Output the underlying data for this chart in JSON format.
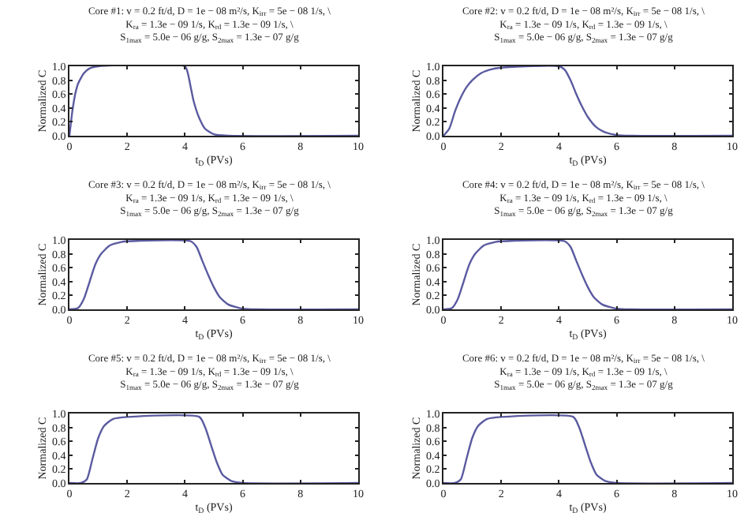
{
  "chart_data": [
    {
      "type": "line",
      "title": "Core #1: v = 0.2 ft/d, D = 1e − 08 m²/s, K$_{irr}$ = 5e − 08 1/s, \\\nK$_{ra}$ = 1.3e − 09 1/s, K$_{rd}$ = 1.3e − 09 1/s, \\\nS$_{1max}$ = 5.0e − 06 g/g, S$_{2max}$ = 1.3e − 07 g/g",
      "xlabel": "t$_{D}$ (PVs)",
      "ylabel": "Normalized C",
      "color": "#5a5aa0",
      "xlim": [
        0,
        10
      ],
      "ylim": [
        0,
        1
      ],
      "xticks": [
        0,
        2,
        4,
        6,
        8,
        10
      ],
      "yticks": [
        {
          "value": 0,
          "label": "0.0"
        },
        {
          "value": 0.2,
          "label": "0.2"
        },
        {
          "value": 0.4,
          "label": "0.4"
        },
        {
          "value": 0.6,
          "label": "0.6"
        },
        {
          "value": 0.8,
          "label": "0.8"
        },
        {
          "value": 1,
          "label": "1.0"
        }
      ],
      "x": [
        0,
        0.1,
        0.2,
        0.3,
        0.5,
        0.7,
        1,
        4,
        4.1,
        4.2,
        4.3,
        4.5,
        4.7,
        5,
        5.5,
        10
      ],
      "values": [
        0,
        0.35,
        0.6,
        0.75,
        0.9,
        0.97,
        1,
        1,
        0.9,
        0.7,
        0.5,
        0.25,
        0.1,
        0.02,
        0,
        0
      ]
    },
    {
      "type": "line",
      "title": "Core #2: v = 0.2 ft/d, D = 1e − 08 m²/s, K$_{irr}$ = 5e − 08 1/s, \\\nK$_{ra}$ = 1.3e − 09 1/s, K$_{rd}$ = 1.3e − 09 1/s, \\\nS$_{1max}$ = 5.0e − 06 g/g, S$_{2max}$ = 1.3e − 07 g/g",
      "xlabel": "t$_{D}$ (PVs)",
      "ylabel": "Normalized C",
      "color": "#5a5aa0",
      "xlim": [
        0,
        10
      ],
      "ylim": [
        0,
        1
      ],
      "xticks": [
        0,
        2,
        4,
        6,
        8,
        10
      ],
      "yticks": [
        {
          "value": 0,
          "label": "0.0"
        },
        {
          "value": 0.2,
          "label": "0.2"
        },
        {
          "value": 0.4,
          "label": "0.4"
        },
        {
          "value": 0.6,
          "label": "0.6"
        },
        {
          "value": 0.8,
          "label": "0.8"
        },
        {
          "value": 1,
          "label": "1.0"
        }
      ],
      "x": [
        0,
        0.2,
        0.4,
        0.6,
        0.8,
        1,
        1.3,
        1.6,
        2,
        4,
        4.2,
        4.4,
        4.6,
        4.8,
        5,
        5.3,
        5.6,
        6,
        6.5,
        10
      ],
      "values": [
        0,
        0.1,
        0.35,
        0.55,
        0.7,
        0.8,
        0.9,
        0.95,
        0.98,
        1,
        0.95,
        0.8,
        0.6,
        0.42,
        0.27,
        0.12,
        0.05,
        0.01,
        0,
        0
      ]
    },
    {
      "type": "line",
      "title": "Core #3: v = 0.2 ft/d, D = 1e − 08 m²/s, K$_{irr}$ = 5e − 08 1/s, \\\nK$_{ra}$ = 1.3e − 09 1/s, K$_{rd}$ = 1.3e − 09 1/s, \\\nS$_{1max}$ = 5.0e − 06 g/g, S$_{2max}$ = 1.3e − 07 g/g",
      "xlabel": "t$_{D}$ (PVs)",
      "ylabel": "Normalized C",
      "color": "#5a5aa0",
      "xlim": [
        0,
        10
      ],
      "ylim": [
        0,
        1
      ],
      "xticks": [
        0,
        2,
        4,
        6,
        8,
        10
      ],
      "yticks": [
        {
          "value": 0,
          "label": "0.0"
        },
        {
          "value": 0.2,
          "label": "0.2"
        },
        {
          "value": 0.4,
          "label": "0.4"
        },
        {
          "value": 0.6,
          "label": "0.6"
        },
        {
          "value": 0.8,
          "label": "0.8"
        },
        {
          "value": 1,
          "label": "1.0"
        }
      ],
      "x": [
        0,
        0.3,
        0.5,
        0.7,
        0.9,
        1.1,
        1.4,
        1.8,
        2,
        4.2,
        4.4,
        4.6,
        4.8,
        5,
        5.2,
        5.5,
        6,
        6.5,
        10
      ],
      "values": [
        0,
        0.02,
        0.15,
        0.4,
        0.65,
        0.8,
        0.92,
        0.97,
        0.98,
        0.98,
        0.9,
        0.7,
        0.5,
        0.32,
        0.18,
        0.07,
        0.01,
        0,
        0
      ]
    },
    {
      "type": "line",
      "title": "Core #4: v = 0.2 ft/d, D = 1e − 08 m²/s, K$_{irr}$ = 5e − 08 1/s, \\\nK$_{ra}$ = 1.3e − 09 1/s, K$_{rd}$ = 1.3e − 09 1/s, \\\nS$_{1max}$ = 5.0e − 06 g/g, S$_{2max}$ = 1.3e − 07 g/g",
      "xlabel": "t$_{D}$ (PVs)",
      "ylabel": "Normalized C",
      "color": "#5a5aa0",
      "xlim": [
        0,
        10
      ],
      "ylim": [
        0,
        1
      ],
      "xticks": [
        0,
        2,
        4,
        6,
        8,
        10
      ],
      "yticks": [
        {
          "value": 0,
          "label": "0.0"
        },
        {
          "value": 0.2,
          "label": "0.2"
        },
        {
          "value": 0.4,
          "label": "0.4"
        },
        {
          "value": 0.6,
          "label": "0.6"
        },
        {
          "value": 0.8,
          "label": "0.8"
        },
        {
          "value": 1,
          "label": "1.0"
        }
      ],
      "x": [
        0,
        0.3,
        0.5,
        0.7,
        0.9,
        1.1,
        1.4,
        1.8,
        2,
        4.2,
        4.4,
        4.6,
        4.8,
        5,
        5.2,
        5.5,
        6,
        6.5,
        10
      ],
      "values": [
        0,
        0.02,
        0.15,
        0.4,
        0.65,
        0.8,
        0.92,
        0.97,
        0.98,
        0.98,
        0.9,
        0.7,
        0.5,
        0.32,
        0.18,
        0.07,
        0.01,
        0,
        0
      ]
    },
    {
      "type": "line",
      "title": "Core #5: v = 0.2 ft/d, D = 1e − 08 m²/s, K$_{irr}$ = 5e − 08 1/s, \\\nK$_{ra}$ = 1.3e − 09 1/s, K$_{rd}$ = 1.3e − 09 1/s, \\\nS$_{1max}$ = 5.0e − 06 g/g, S$_{2max}$ = 1.3e − 07 g/g",
      "xlabel": "t$_{D}$ (PVs)",
      "ylabel": "Normalized C",
      "color": "#5a5aa0",
      "xlim": [
        0,
        10
      ],
      "ylim": [
        0,
        1
      ],
      "xticks": [
        0,
        2,
        4,
        6,
        8,
        10
      ],
      "yticks": [
        {
          "value": 0,
          "label": "0.0"
        },
        {
          "value": 0.2,
          "label": "0.2"
        },
        {
          "value": 0.4,
          "label": "0.4"
        },
        {
          "value": 0.6,
          "label": "0.6"
        },
        {
          "value": 0.8,
          "label": "0.8"
        },
        {
          "value": 1,
          "label": "1.0"
        }
      ],
      "x": [
        0,
        0.4,
        0.6,
        0.8,
        1,
        1.2,
        1.5,
        2,
        4.5,
        4.7,
        4.9,
        5.1,
        5.3,
        5.6,
        6,
        10
      ],
      "values": [
        0,
        0,
        0.05,
        0.35,
        0.65,
        0.82,
        0.92,
        0.95,
        0.95,
        0.8,
        0.55,
        0.3,
        0.12,
        0.03,
        0,
        0
      ]
    },
    {
      "type": "line",
      "title": "Core #6: v = 0.2 ft/d, D = 1e − 08 m²/s, K$_{irr}$ = 5e − 08 1/s, \\\nK$_{ra}$ = 1.3e − 09 1/s, K$_{rd}$ = 1.3e − 09 1/s, \\\nS$_{1max}$ = 5.0e − 06 g/g, S$_{2max}$ = 1.3e − 07 g/g",
      "xlabel": "t$_{D}$ (PVs)",
      "ylabel": "Normalized C",
      "color": "#5a5aa0",
      "xlim": [
        0,
        10
      ],
      "ylim": [
        0,
        1
      ],
      "xticks": [
        0,
        2,
        4,
        6,
        8,
        10
      ],
      "yticks": [
        {
          "value": 0,
          "label": "0.0"
        },
        {
          "value": 0.2,
          "label": "0.2"
        },
        {
          "value": 0.4,
          "label": "0.4"
        },
        {
          "value": 0.6,
          "label": "0.6"
        },
        {
          "value": 0.8,
          "label": "0.8"
        },
        {
          "value": 1,
          "label": "1.0"
        }
      ],
      "x": [
        0,
        0.4,
        0.6,
        0.8,
        1,
        1.2,
        1.5,
        2,
        4.5,
        4.7,
        4.9,
        5.1,
        5.3,
        5.6,
        6,
        10
      ],
      "values": [
        0,
        0,
        0.05,
        0.35,
        0.65,
        0.82,
        0.92,
        0.95,
        0.95,
        0.8,
        0.55,
        0.3,
        0.12,
        0.03,
        0,
        0
      ]
    }
  ]
}
